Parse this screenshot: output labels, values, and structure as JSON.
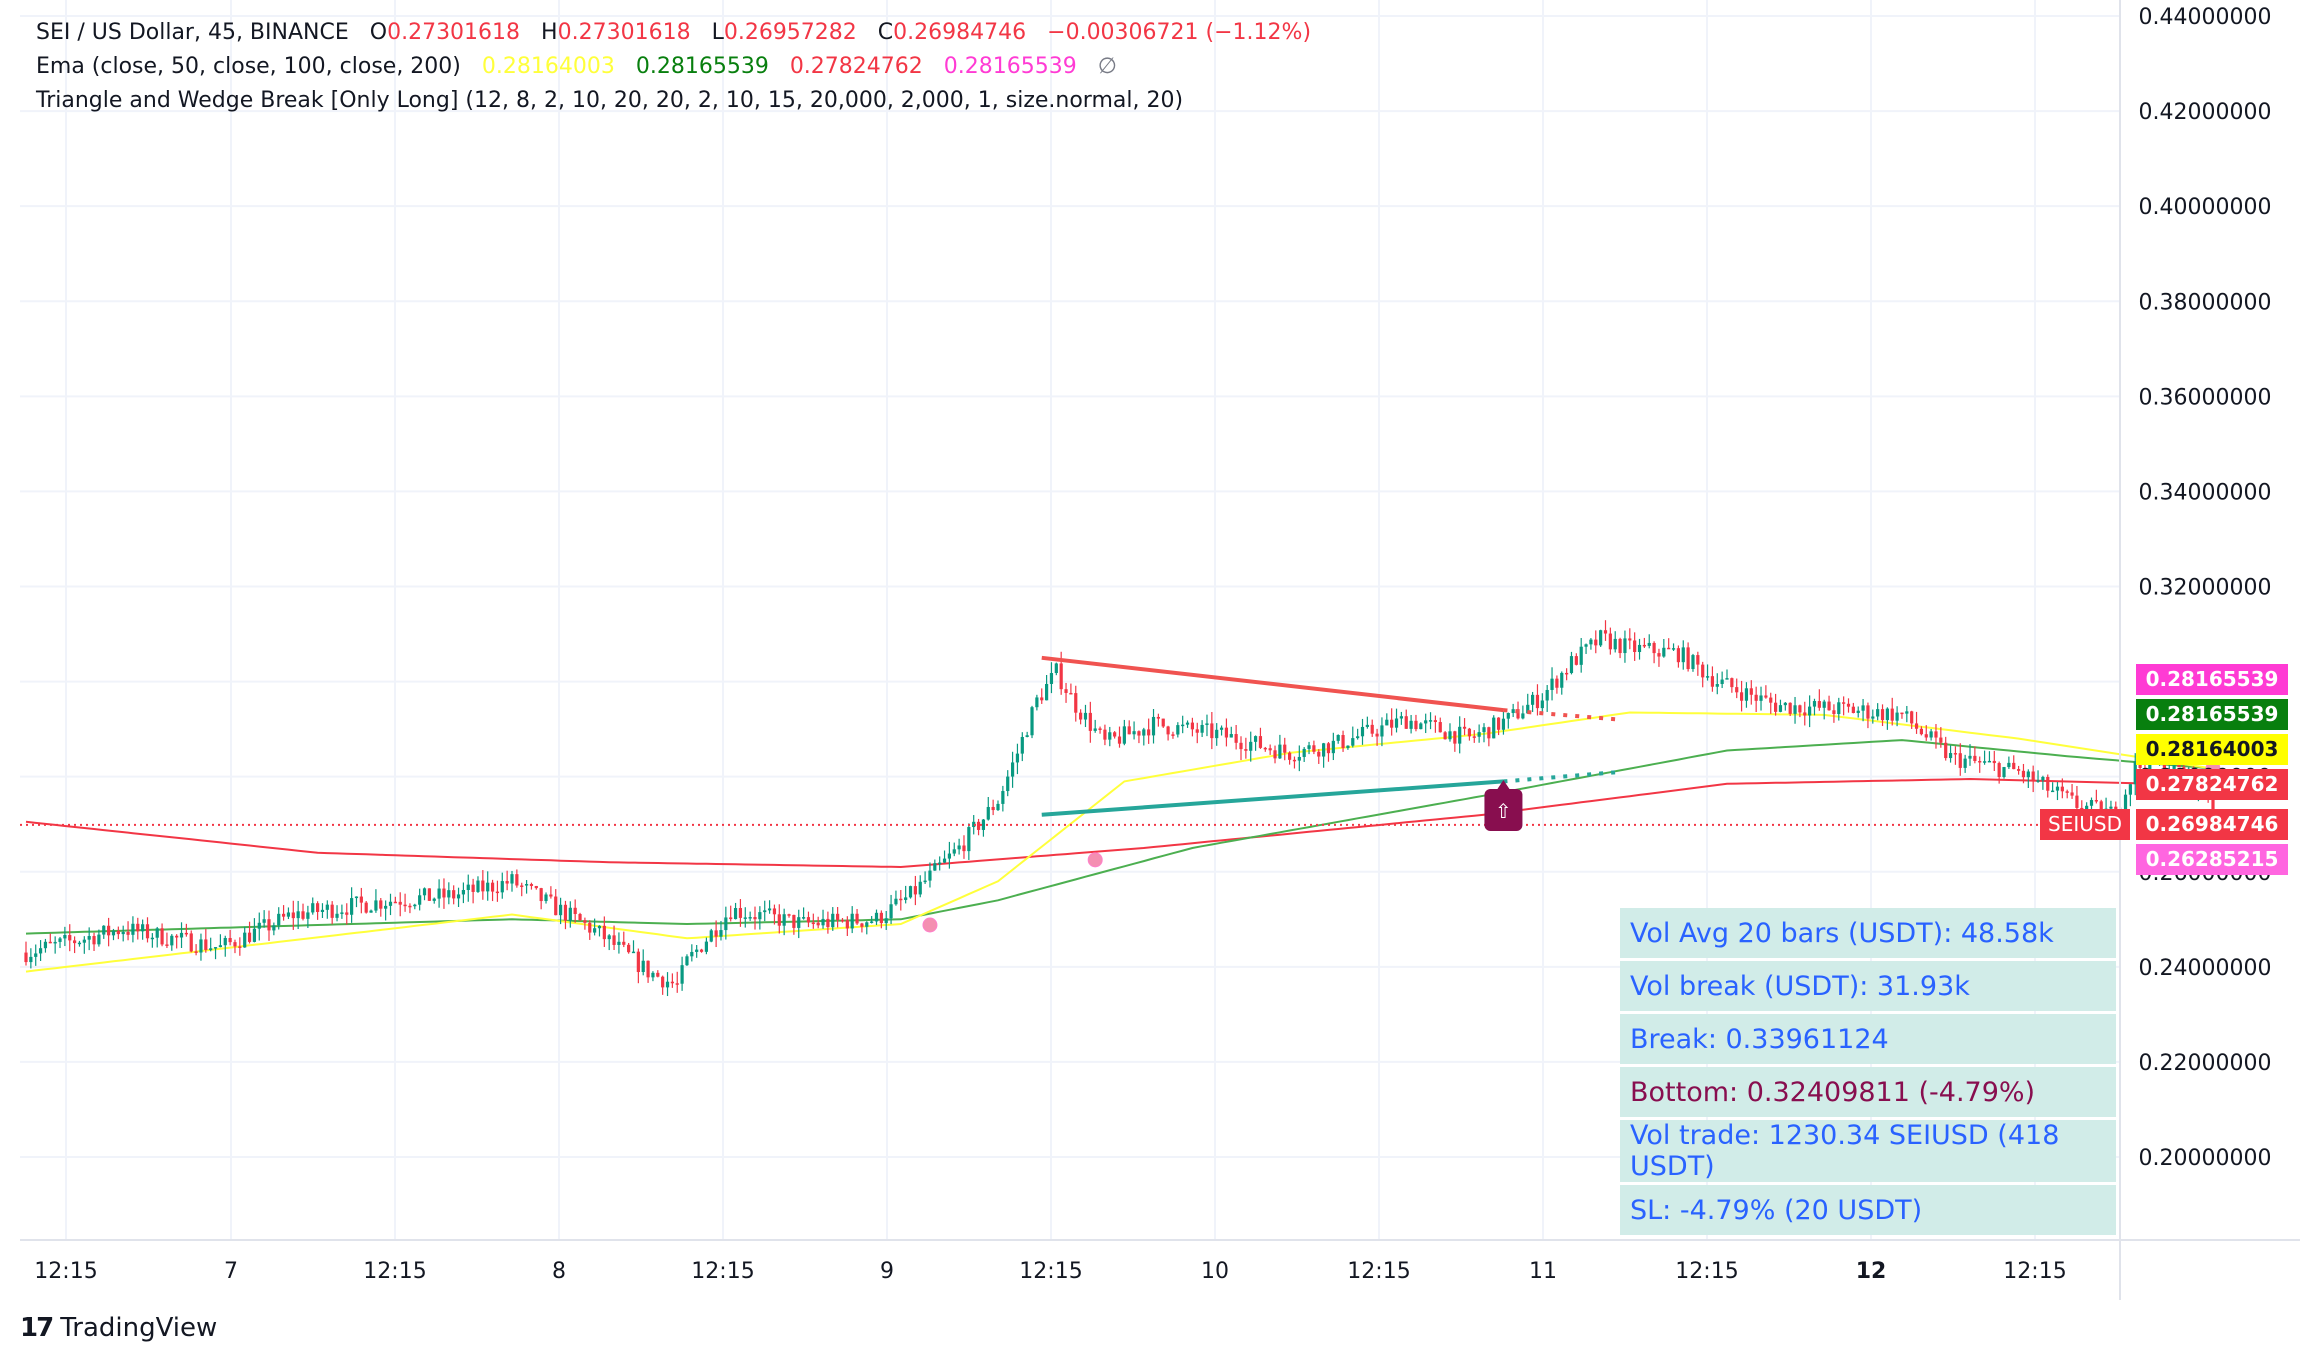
{
  "legend": {
    "symbol": "SEI / US Dollar, 45, BINANCE",
    "o_label": "O",
    "o_value": "0.27301618",
    "h_label": "H",
    "h_value": "0.27301618",
    "l_label": "L",
    "l_value": "0.26957282",
    "c_label": "C",
    "c_value": "0.26984746",
    "change": "−0.00306721 (−1.12%)",
    "ema_label": "Ema (close, 50, close, 100, close, 200)",
    "ema50": "0.28164003",
    "ema100": "0.28165539",
    "ema200": "0.27824762",
    "ema_extra": "0.28165539",
    "ema_extra2": "∅",
    "indicator_label": "Triangle and Wedge Break [Only Long] (12, 8, 2, 10, 20, 20, 2, 10, 15, 20,000, 2,000, 1, size.normal, 20)"
  },
  "colors": {
    "up": "#089981",
    "down": "#f23645",
    "ema50": "#ffff3b",
    "ema100": "#4caf50",
    "ema200": "#f23645",
    "pink": "#ff3bd4",
    "teal": "#26a69a",
    "marker": "#880e4f"
  },
  "price_tags": [
    {
      "label": "0.28165539",
      "color": "#ff3bd4",
      "text_color": "#ffffff"
    },
    {
      "label": "0.28165539",
      "color": "#087f0e",
      "text_color": "#ffffff"
    },
    {
      "label": "0.28164003",
      "color": "#ffff00",
      "text_color": "#131722"
    },
    {
      "label": "0.27824762",
      "color": "#f23645",
      "text_color": "#ffffff"
    },
    {
      "label": "0.26984746",
      "color": "#f23645",
      "text_color": "#ffffff"
    },
    {
      "label": "0.26285215",
      "color": "#ff66e0",
      "text_color": "#ffffff"
    }
  ],
  "symbol_tag": "SEIUSD",
  "marker_icon": "⇧",
  "info_table": [
    "Vol Avg 20 bars (USDT): 48.58k",
    "Vol break (USDT): 31.93k",
    "Break: 0.33961124",
    "Bottom: 0.32409811 (-4.79%)",
    "Vol trade: 1230.34 SEIUSD (418 USDT)",
    "SL: -4.79% (20 USDT)"
  ],
  "brand": "TradingView",
  "brand_icon": "tradingview-logo",
  "chart_data": {
    "type": "candlestick",
    "ylim": [
      0.19,
      0.445
    ],
    "y_ticks": [
      "0.44000000",
      "0.42000000",
      "0.40000000",
      "0.38000000",
      "0.36000000",
      "0.34000000",
      "0.32000000",
      "0.30000000",
      "0.28000000",
      "0.26000000",
      "0.24000000",
      "0.22000000",
      "0.20000000"
    ],
    "x_ticks": [
      "12:15",
      "7",
      "12:15",
      "8",
      "12:15",
      "9",
      "12:15",
      "10",
      "12:15",
      "11",
      "12:15",
      "12",
      "12:15"
    ],
    "last_price": 0.26984746,
    "anchors": [
      [
        0,
        0.243
      ],
      [
        20,
        0.248
      ],
      [
        40,
        0.244
      ],
      [
        55,
        0.251
      ],
      [
        75,
        0.254
      ],
      [
        88,
        0.255
      ],
      [
        100,
        0.258
      ],
      [
        108,
        0.253
      ],
      [
        118,
        0.247
      ],
      [
        128,
        0.239
      ],
      [
        134,
        0.236
      ],
      [
        136,
        0.241
      ],
      [
        145,
        0.252
      ],
      [
        160,
        0.249
      ],
      [
        175,
        0.25
      ],
      [
        182,
        0.255
      ],
      [
        192,
        0.265
      ],
      [
        200,
        0.275
      ],
      [
        204,
        0.285
      ],
      [
        208,
        0.296
      ],
      [
        212,
        0.302
      ],
      [
        216,
        0.295
      ],
      [
        222,
        0.287
      ],
      [
        232,
        0.291
      ],
      [
        245,
        0.289
      ],
      [
        260,
        0.285
      ],
      [
        270,
        0.287
      ],
      [
        284,
        0.292
      ],
      [
        297,
        0.288
      ],
      [
        305,
        0.292
      ],
      [
        312,
        0.297
      ],
      [
        318,
        0.304
      ],
      [
        324,
        0.309
      ],
      [
        330,
        0.307
      ],
      [
        340,
        0.306
      ],
      [
        348,
        0.3
      ],
      [
        360,
        0.295
      ],
      [
        376,
        0.294
      ],
      [
        386,
        0.293
      ],
      [
        396,
        0.284
      ],
      [
        410,
        0.281
      ],
      [
        422,
        0.274
      ],
      [
        430,
        0.272
      ],
      [
        434,
        0.282
      ],
      [
        438,
        0.283
      ],
      [
        444,
        0.281
      ],
      [
        450,
        0.275
      ]
    ],
    "ema50": [
      [
        0,
        0.239
      ],
      [
        100,
        0.251
      ],
      [
        136,
        0.246
      ],
      [
        180,
        0.249
      ],
      [
        200,
        0.258
      ],
      [
        226,
        0.279
      ],
      [
        260,
        0.285
      ],
      [
        300,
        0.289
      ],
      [
        330,
        0.2935
      ],
      [
        370,
        0.293
      ],
      [
        410,
        0.288
      ],
      [
        450,
        0.2817
      ]
    ],
    "ema100": [
      [
        0,
        0.247
      ],
      [
        100,
        0.25
      ],
      [
        136,
        0.249
      ],
      [
        180,
        0.25
      ],
      [
        200,
        0.254
      ],
      [
        240,
        0.265
      ],
      [
        300,
        0.276
      ],
      [
        350,
        0.2855
      ],
      [
        386,
        0.2877
      ],
      [
        420,
        0.2843
      ],
      [
        450,
        0.2817
      ]
    ],
    "ema200": [
      [
        0,
        0.2705
      ],
      [
        60,
        0.264
      ],
      [
        120,
        0.262
      ],
      [
        180,
        0.261
      ],
      [
        230,
        0.265
      ],
      [
        300,
        0.272
      ],
      [
        350,
        0.2785
      ],
      [
        400,
        0.2795
      ],
      [
        450,
        0.2782
      ]
    ],
    "triangle": {
      "upper": [
        [
          209,
          0.305
        ],
        [
          304,
          0.294
        ]
      ],
      "lower": [
        [
          209,
          0.272
        ],
        [
          304,
          0.279
        ]
      ],
      "upper_dotted": [
        [
          304,
          0.294
        ],
        [
          328,
          0.292
        ]
      ],
      "lower_dotted": [
        [
          304,
          0.279
        ],
        [
          328,
          0.281
        ]
      ]
    },
    "signal": {
      "index": 304,
      "price": 0.273
    },
    "dots": [
      [
        186,
        0.2488
      ],
      [
        220,
        0.2625
      ],
      [
        450,
        0.2817
      ]
    ]
  }
}
